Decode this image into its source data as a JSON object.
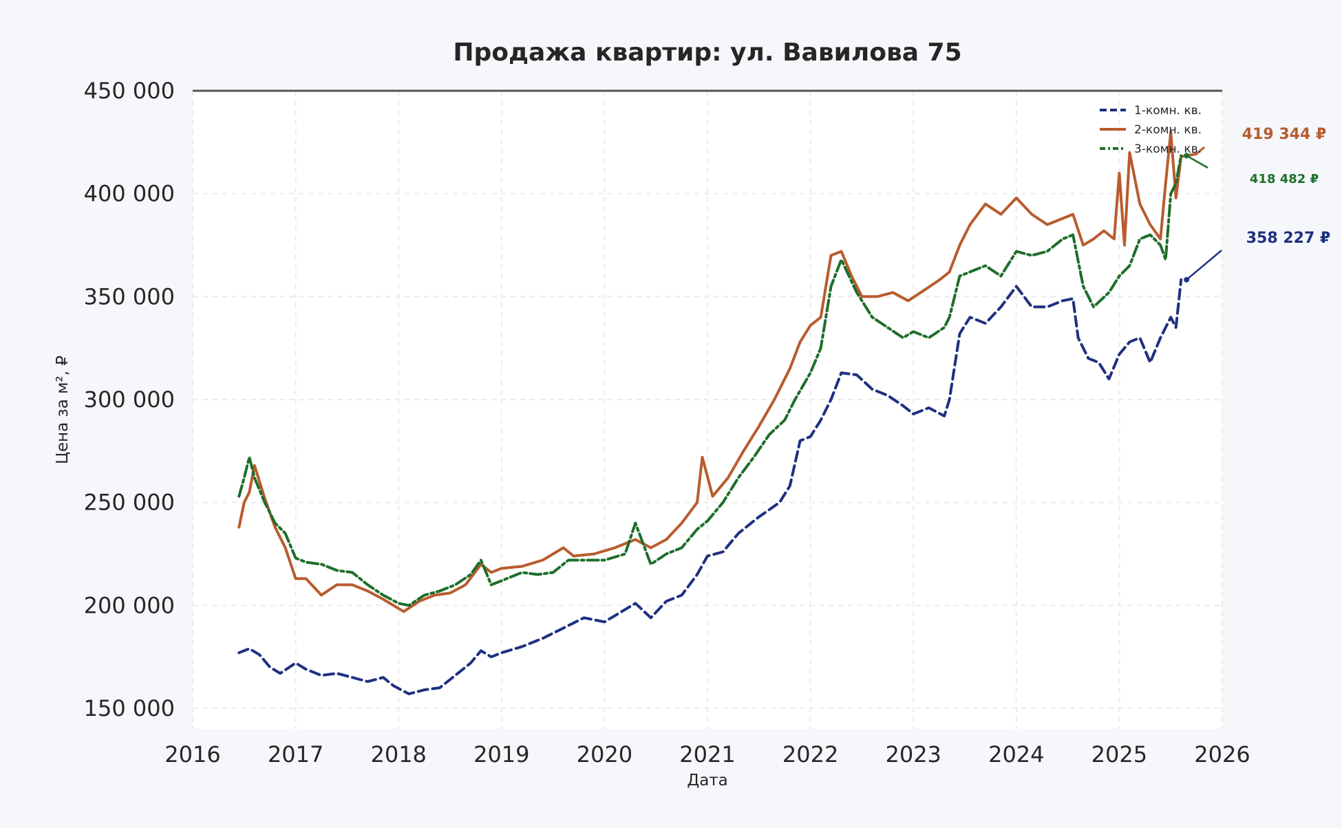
{
  "chart_data": {
    "type": "line",
    "title": "Продажа квартир: ул. Вавилова 75",
    "xlabel": "Дата",
    "ylabel": "Цена за м², ₽",
    "xlim": [
      2016,
      2026
    ],
    "ylim": [
      145000,
      450000
    ],
    "x_ticks": [
      "2016",
      "2017",
      "2018",
      "2019",
      "2020",
      "2021",
      "2022",
      "2023",
      "2024",
      "2025",
      "2026"
    ],
    "y_ticks": [
      "150 000",
      "200 000",
      "250 000",
      "300 000",
      "350 000",
      "400 000",
      "450 000"
    ],
    "y_tick_values": [
      150000,
      200000,
      250000,
      300000,
      350000,
      400000,
      450000
    ],
    "grid": true,
    "legend_position": "top-right",
    "series": [
      {
        "name": "1-комн. кв.",
        "color": "#1f3080",
        "style": "dashed",
        "end_label": "358 227 ₽",
        "x": [
          2016.45,
          2016.55,
          2016.65,
          2016.75,
          2016.85,
          2017.0,
          2017.1,
          2017.25,
          2017.4,
          2017.55,
          2017.7,
          2017.85,
          2017.95,
          2018.1,
          2018.25,
          2018.4,
          2018.55,
          2018.7,
          2018.8,
          2018.9,
          2019.0,
          2019.2,
          2019.4,
          2019.6,
          2019.8,
          2020.0,
          2020.2,
          2020.3,
          2020.45,
          2020.6,
          2020.75,
          2020.9,
          2021.0,
          2021.15,
          2021.3,
          2021.5,
          2021.7,
          2021.8,
          2021.9,
          2022.0,
          2022.1,
          2022.2,
          2022.3,
          2022.45,
          2022.6,
          2022.75,
          2022.9,
          2023.0,
          2023.15,
          2023.3,
          2023.35,
          2023.45,
          2023.55,
          2023.7,
          2023.85,
          2024.0,
          2024.15,
          2024.3,
          2024.45,
          2024.55,
          2024.6,
          2024.7,
          2024.8,
          2024.9,
          2025.0,
          2025.1,
          2025.2,
          2025.3,
          2025.4,
          2025.5,
          2025.55,
          2025.6
        ],
        "y": [
          177000,
          179000,
          176000,
          170000,
          167000,
          172000,
          169000,
          166000,
          167000,
          165000,
          163000,
          165000,
          161000,
          157000,
          159000,
          160000,
          166000,
          172000,
          178000,
          175000,
          177000,
          180000,
          184000,
          189000,
          194000,
          192000,
          198000,
          201000,
          194000,
          202000,
          205000,
          215000,
          224000,
          226000,
          235000,
          243000,
          250000,
          258000,
          280000,
          282000,
          290000,
          300000,
          313000,
          312000,
          305000,
          302000,
          297000,
          293000,
          296000,
          292000,
          300000,
          332000,
          340000,
          337000,
          345000,
          355000,
          345000,
          345000,
          348000,
          349000,
          330000,
          320000,
          318000,
          310000,
          322000,
          328000,
          330000,
          318000,
          330000,
          340000,
          335000,
          358227
        ]
      },
      {
        "name": "2-комн. кв.",
        "color": "#b85c2e",
        "style": "solid",
        "end_label": "419 344 ₽",
        "x": [
          2016.45,
          2016.5,
          2016.55,
          2016.6,
          2016.7,
          2016.8,
          2016.9,
          2017.0,
          2017.1,
          2017.25,
          2017.4,
          2017.55,
          2017.7,
          2017.85,
          2017.95,
          2018.05,
          2018.2,
          2018.35,
          2018.5,
          2018.65,
          2018.8,
          2018.9,
          2019.0,
          2019.2,
          2019.4,
          2019.6,
          2019.7,
          2019.9,
          2020.1,
          2020.3,
          2020.45,
          2020.6,
          2020.75,
          2020.9,
          2020.95,
          2021.05,
          2021.2,
          2021.35,
          2021.5,
          2021.65,
          2021.8,
          2021.9,
          2022.0,
          2022.1,
          2022.2,
          2022.3,
          2022.4,
          2022.5,
          2022.65,
          2022.8,
          2022.95,
          2023.1,
          2023.25,
          2023.35,
          2023.45,
          2023.55,
          2023.7,
          2023.85,
          2024.0,
          2024.15,
          2024.3,
          2024.45,
          2024.55,
          2024.65,
          2024.75,
          2024.85,
          2024.95,
          2025.0,
          2025.05,
          2025.1,
          2025.2,
          2025.3,
          2025.4,
          2025.45,
          2025.5,
          2025.55,
          2025.6,
          2025.75
        ],
        "y": [
          238000,
          250000,
          255000,
          268000,
          252000,
          238000,
          228000,
          213000,
          213000,
          205000,
          210000,
          210000,
          207000,
          203000,
          200000,
          197000,
          202000,
          205000,
          206000,
          210000,
          220000,
          216000,
          218000,
          219000,
          222000,
          228000,
          224000,
          225000,
          228000,
          232000,
          228000,
          232000,
          240000,
          250000,
          272000,
          253000,
          262000,
          275000,
          287000,
          300000,
          315000,
          328000,
          336000,
          340000,
          370000,
          372000,
          360000,
          350000,
          350000,
          352000,
          348000,
          353000,
          358000,
          362000,
          375000,
          385000,
          395000,
          390000,
          398000,
          390000,
          385000,
          388000,
          390000,
          375000,
          378000,
          382000,
          378000,
          410000,
          375000,
          420000,
          395000,
          385000,
          378000,
          405000,
          430000,
          398000,
          418000,
          419344
        ]
      },
      {
        "name": "3-комн. кв.",
        "color": "#1e6e2a",
        "style": "dash-dot",
        "end_label": "418 482 ₽",
        "x": [
          2016.45,
          2016.5,
          2016.55,
          2016.6,
          2016.7,
          2016.8,
          2016.9,
          2017.0,
          2017.1,
          2017.25,
          2017.4,
          2017.55,
          2017.7,
          2017.85,
          2018.0,
          2018.1,
          2018.25,
          2018.4,
          2018.55,
          2018.7,
          2018.8,
          2018.9,
          2019.0,
          2019.2,
          2019.35,
          2019.5,
          2019.65,
          2019.8,
          2020.0,
          2020.2,
          2020.3,
          2020.45,
          2020.6,
          2020.75,
          2020.9,
          2021.0,
          2021.15,
          2021.3,
          2021.45,
          2021.6,
          2021.75,
          2021.85,
          2022.0,
          2022.1,
          2022.2,
          2022.3,
          2022.45,
          2022.6,
          2022.75,
          2022.9,
          2023.0,
          2023.15,
          2023.3,
          2023.35,
          2023.45,
          2023.55,
          2023.7,
          2023.85,
          2024.0,
          2024.15,
          2024.3,
          2024.45,
          2024.55,
          2024.65,
          2024.75,
          2024.9,
          2025.0,
          2025.1,
          2025.2,
          2025.3,
          2025.4,
          2025.45,
          2025.5,
          2025.55,
          2025.6
        ],
        "y": [
          253000,
          262000,
          272000,
          262000,
          250000,
          240000,
          235000,
          223000,
          221000,
          220000,
          217000,
          216000,
          210000,
          205000,
          201000,
          200000,
          205000,
          207000,
          210000,
          215000,
          222000,
          210000,
          212000,
          216000,
          215000,
          216000,
          222000,
          222000,
          222000,
          225000,
          240000,
          220000,
          225000,
          228000,
          237000,
          241000,
          250000,
          262000,
          272000,
          283000,
          290000,
          300000,
          313000,
          325000,
          355000,
          368000,
          352000,
          340000,
          335000,
          330000,
          333000,
          330000,
          335000,
          340000,
          360000,
          362000,
          365000,
          360000,
          372000,
          370000,
          372000,
          378000,
          380000,
          355000,
          345000,
          352000,
          360000,
          365000,
          378000,
          380000,
          375000,
          368000,
          400000,
          405000,
          418482
        ]
      }
    ]
  }
}
